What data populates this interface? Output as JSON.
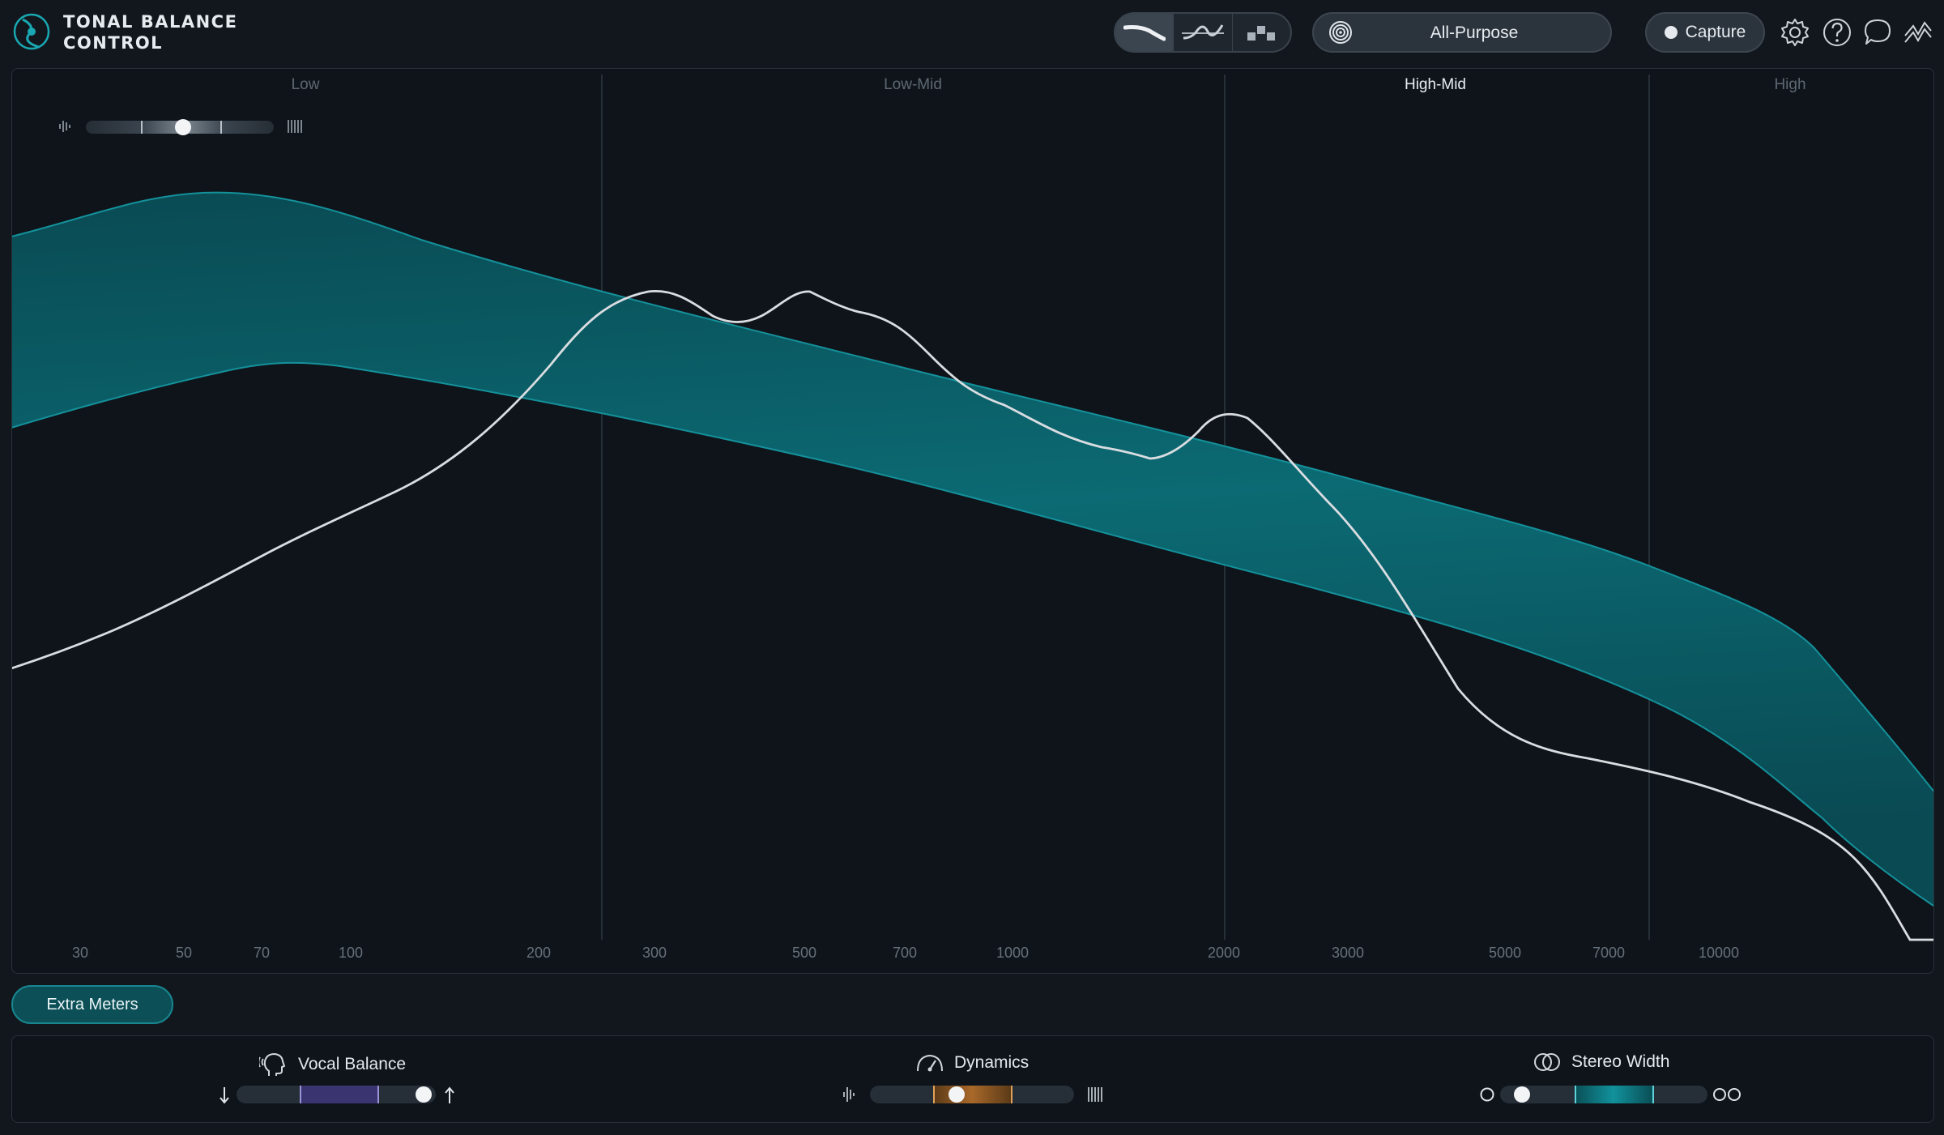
{
  "app": {
    "title_line1": "TONAL BALANCE",
    "title_line2": "CONTROL",
    "accent_color": "#18a3ad",
    "band_color": "#0b5e66",
    "curve_color": "#d9dde1"
  },
  "header": {
    "view_modes": [
      {
        "name": "broadband-view",
        "active": true
      },
      {
        "name": "fine-view",
        "active": false
      },
      {
        "name": "crest-view",
        "active": false
      }
    ],
    "preset": {
      "label": "All-Purpose",
      "icon": "target-icon"
    },
    "capture_label": "Capture",
    "icons": [
      "gear-icon",
      "help-icon",
      "chat-icon",
      "signal-chain-icon"
    ]
  },
  "graph": {
    "bands": [
      {
        "label": "Low",
        "active": false
      },
      {
        "label": "Low-Mid",
        "active": false
      },
      {
        "label": "High-Mid",
        "active": true
      },
      {
        "label": "High",
        "active": false
      }
    ],
    "freq_labels": [
      "30",
      "50",
      "70",
      "100",
      "200",
      "300",
      "500",
      "700",
      "1000",
      "2000",
      "3000",
      "5000",
      "7000",
      "10000"
    ],
    "crest_slider_value": 0.52
  },
  "extra_meters_label": "Extra Meters",
  "meters": {
    "vocal_balance": {
      "label": "Vocal Balance",
      "value": 0.98
    },
    "dynamics": {
      "label": "Dynamics",
      "value": 0.42
    },
    "stereo_width": {
      "label": "Stereo Width",
      "value": 0.07
    }
  }
}
